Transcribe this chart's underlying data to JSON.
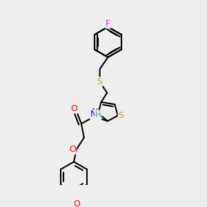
{
  "bg_color": "#eeeeee",
  "bond_color": "#000000",
  "bond_width": 1.5,
  "atom_colors": {
    "F": "#ff00ff",
    "S": "#c8a000",
    "N": "#0000ff",
    "O": "#ff0000",
    "H": "#44aaaa"
  },
  "font_size": 8.5,
  "fig_size": [
    3.0,
    3.0
  ],
  "dpi": 100
}
